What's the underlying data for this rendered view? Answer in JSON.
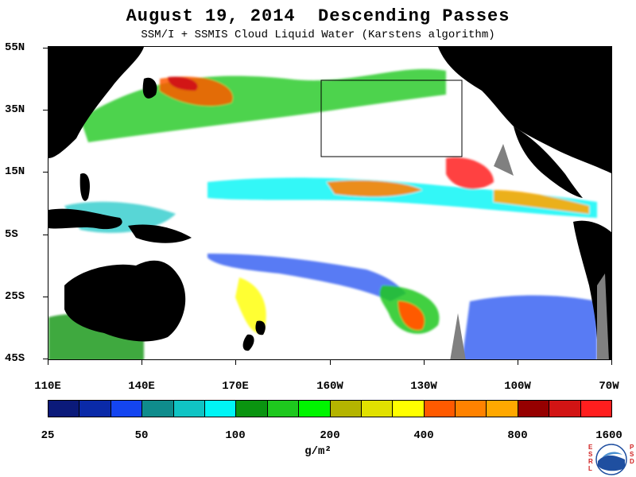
{
  "title": "August 19, 2014  Descending Passes",
  "subtitle": "SSM/I + SSMIS Cloud Liquid Water (Karstens algorithm)",
  "map": {
    "lat_labels": [
      "55N",
      "35N",
      "15N",
      "5S",
      "25S",
      "45S"
    ],
    "lon_labels": [
      "110E",
      "140E",
      "170E",
      "160W",
      "130W",
      "100W",
      "70W"
    ],
    "land_color": "#000000",
    "no_data_color": "#808080",
    "box_color": "#000000"
  },
  "colorbar": {
    "colors": [
      "#0b1a7a",
      "#0a2aa8",
      "#1445f0",
      "#0f8c8c",
      "#10c4c4",
      "#00f5f5",
      "#0a9410",
      "#1ec81e",
      "#00f500",
      "#b4b400",
      "#e1e100",
      "#ffff00",
      "#ff5a00",
      "#ff8200",
      "#ffa800",
      "#960000",
      "#d21414",
      "#ff1e1e"
    ],
    "labels": [
      "25",
      "50",
      "100",
      "200",
      "400",
      "800",
      "1600"
    ],
    "units": "g/m²"
  },
  "logo": {
    "left_letters": "E\nS\nR\nL",
    "right_letters": "P\nS\nD",
    "icon": "noaa-logo-icon"
  }
}
